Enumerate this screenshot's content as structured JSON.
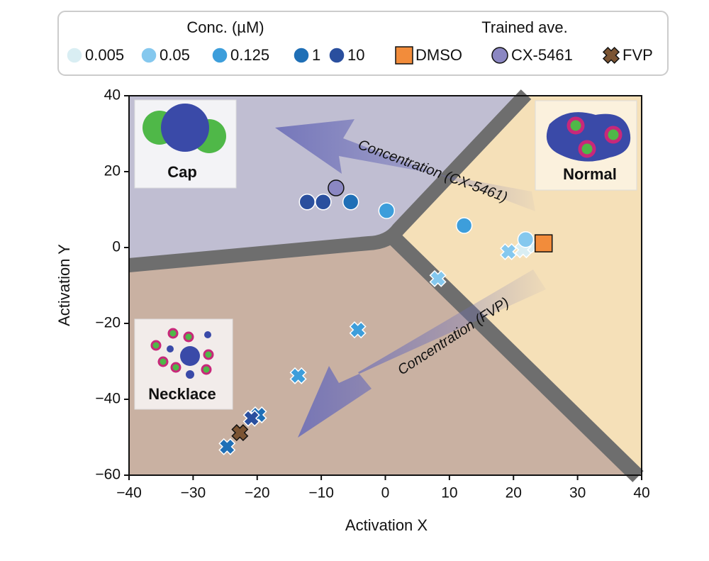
{
  "chart_data": {
    "type": "scatter",
    "xlabel": "Activation X",
    "ylabel": "Activation Y",
    "xlim": [
      -40,
      40
    ],
    "ylim": [
      -60,
      40
    ],
    "xticks": [
      {
        "value": -40,
        "label": "−40"
      },
      {
        "value": -30,
        "label": "−30"
      },
      {
        "value": -20,
        "label": "−20"
      },
      {
        "value": -10,
        "label": "−10"
      },
      0,
      10,
      20,
      30,
      40
    ],
    "yticks": [
      {
        "value": -60,
        "label": "−60"
      },
      {
        "value": -40,
        "label": "−40"
      },
      {
        "value": -20,
        "label": "−20"
      },
      0,
      20,
      40
    ],
    "legend_title": "Conc. (µM)",
    "trained_title": "Trained ave.",
    "concentrations": [
      {
        "name": "0.005",
        "color": "#d9eef3",
        "circle": {
          "x": [
            22.2
          ],
          "y": [
            0.4
          ]
        },
        "cross": {
          "x": [
            21.5
          ],
          "y": [
            -0.6
          ]
        }
      },
      {
        "name": "0.05",
        "color": "#85c8ee",
        "circle": {
          "x": [
            21.9
          ],
          "y": [
            2.1
          ]
        },
        "cross": {
          "x": [
            19.2,
            8.2
          ],
          "y": [
            -1.1,
            -8.2
          ]
        }
      },
      {
        "name": "0.125",
        "color": "#3d9edb",
        "circle": {
          "x": [
            0.2,
            12.3
          ],
          "y": [
            9.7,
            5.8
          ]
        },
        "cross": {
          "x": [
            -4.3,
            -13.6
          ],
          "y": [
            -21.7,
            -33.8
          ]
        }
      },
      {
        "name": "1",
        "color": "#1f6fb6",
        "circle": {
          "x": [
            -5.4
          ],
          "y": [
            12
          ]
        },
        "cross": {
          "x": [
            -19.8,
            -24.7
          ],
          "y": [
            -44.1,
            -52.5
          ]
        }
      },
      {
        "name": "10",
        "color": "#2a4f9e",
        "circle": {
          "x": [
            -12.2,
            -9.7
          ],
          "y": [
            12,
            12
          ]
        },
        "cross": {
          "x": [
            -20.9
          ],
          "y": [
            -45
          ]
        }
      }
    ],
    "trained": [
      {
        "name": "DMSO",
        "color": "#f28c3b",
        "marker": "square",
        "x": 24.7,
        "y": 1.1
      },
      {
        "name": "CX-5461",
        "color": "#8b87c2",
        "marker": "circle",
        "x": -7.7,
        "y": 15.7
      },
      {
        "name": "FVP",
        "color": "#7b5433",
        "marker": "cross",
        "x": -22.7,
        "y": -48.8
      }
    ],
    "regions": [
      "Cap",
      "Normal",
      "Necklace"
    ],
    "arrows": [
      "Concentration (CX-5461)",
      "Concentration (FVP)"
    ]
  }
}
